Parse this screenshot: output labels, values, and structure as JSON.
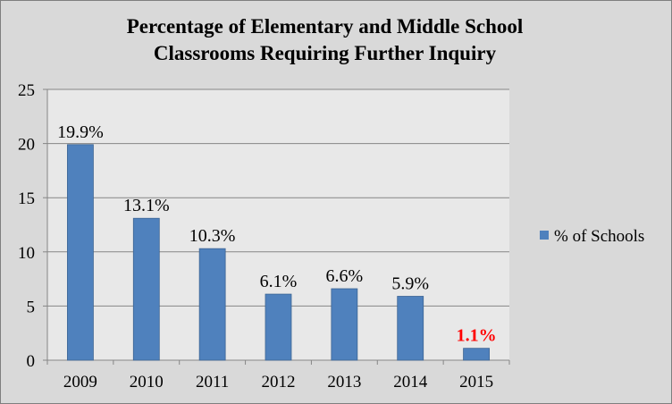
{
  "chart_data": {
    "type": "bar",
    "title_lines": [
      "Percentage of Elementary and Middle School",
      "Classrooms Requiring Further Inquiry"
    ],
    "categories": [
      "2009",
      "2010",
      "2011",
      "2012",
      "2013",
      "2014",
      "2015"
    ],
    "series": [
      {
        "name": "% of Schools",
        "values": [
          19.9,
          13.1,
          10.3,
          6.1,
          6.6,
          5.9,
          1.1
        ],
        "data_labels": [
          "19.9%",
          "13.1%",
          "10.3%",
          "6.1%",
          "6.6%",
          "5.9%",
          "1.1%"
        ],
        "color": "#4f81bd"
      }
    ],
    "highlight": {
      "index": 6,
      "label_color": "#ff0000"
    },
    "ylim": [
      0,
      25
    ],
    "yticks": [
      "0",
      "5",
      "10",
      "15",
      "20",
      "25"
    ],
    "xlabel": "",
    "ylabel": "",
    "grid": true,
    "legend_position": "right",
    "colors": {
      "background": "#d9d9d9",
      "plot_area": "#e8e8e8",
      "gridline": "#868686"
    }
  }
}
